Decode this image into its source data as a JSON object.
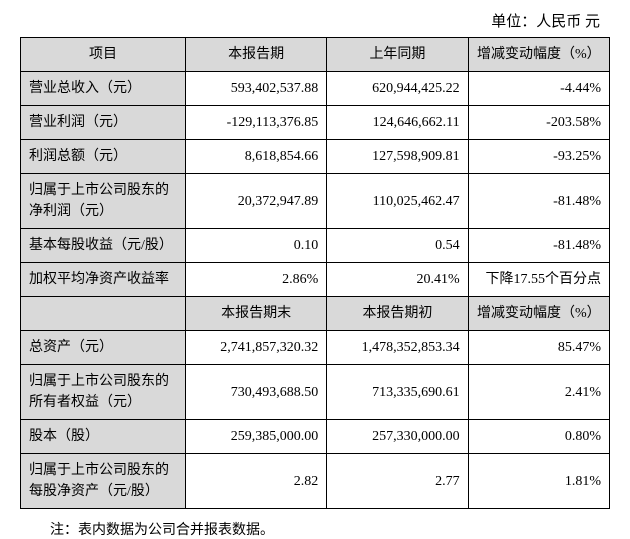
{
  "unit_label": "单位：人民币  元",
  "header1": {
    "c1": "项目",
    "c2": "本报告期",
    "c3": "上年同期",
    "c4": "增减变动幅度（%）"
  },
  "rows1": [
    {
      "label": "营业总收入（元）",
      "v1": "593,402,537.88",
      "v2": "620,944,425.22",
      "v3": "-4.44%"
    },
    {
      "label": "营业利润（元）",
      "v1": "-129,113,376.85",
      "v2": "124,646,662.11",
      "v3": "-203.58%"
    },
    {
      "label": "利润总额（元）",
      "v1": "8,618,854.66",
      "v2": "127,598,909.81",
      "v3": "-93.25%"
    },
    {
      "label": "归属于上市公司股东的净利润（元）",
      "v1": "20,372,947.89",
      "v2": "110,025,462.47",
      "v3": "-81.48%"
    },
    {
      "label": "基本每股收益（元/股）",
      "v1": "0.10",
      "v2": "0.54",
      "v3": "-81.48%"
    },
    {
      "label": "加权平均净资产收益率",
      "v1": "2.86%",
      "v2": "20.41%",
      "v3": "下降17.55个百分点"
    }
  ],
  "header2": {
    "c2": "本报告期末",
    "c3": "本报告期初",
    "c4": "增减变动幅度（%）"
  },
  "rows2": [
    {
      "label": "总资产（元）",
      "v1": "2,741,857,320.32",
      "v2": "1,478,352,853.34",
      "v3": "85.47%"
    },
    {
      "label": "归属于上市公司股东的所有者权益（元）",
      "v1": "730,493,688.50",
      "v2": "713,335,690.61",
      "v3": "2.41%"
    },
    {
      "label": "股本（股）",
      "v1": "259,385,000.00",
      "v2": "257,330,000.00",
      "v3": "0.80%"
    },
    {
      "label": "归属于上市公司股东的每股净资产（元/股）",
      "v1": "2.82",
      "v2": "2.77",
      "v3": "1.81%"
    }
  ],
  "note": "注：表内数据为公司合并报表数据。"
}
